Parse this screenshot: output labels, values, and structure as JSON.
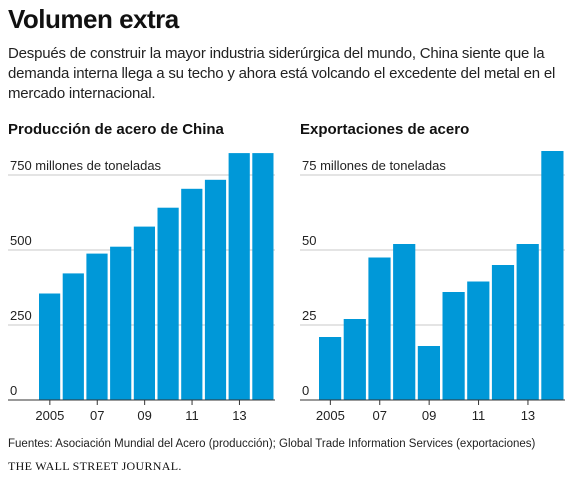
{
  "title": "Volumen extra",
  "subtitle": "Después de construir la mayor industria siderúrgica del mundo, China siente que la demanda interna llega a su techo y ahora está volcando el excedente del metal en el mercado internacional.",
  "source": "Fuentes: Asociación Mundial del Acero (producción); Global Trade Information Services (exportaciones)",
  "credit": "THE WALL STREET JOURNAL.",
  "chart_data": [
    {
      "type": "bar",
      "title": "Producción de acero de China",
      "categories": [
        "2005",
        null,
        "07",
        null,
        "09",
        null,
        "11",
        null,
        "13",
        null
      ],
      "values": [
        355,
        422,
        488,
        511,
        578,
        641,
        704,
        734,
        823,
        823
      ],
      "color": "#0098d8",
      "ylim": [
        0,
        830
      ],
      "yticks": [
        0,
        250,
        500,
        {
          "value": 750,
          "label": "750 millones de toneladas"
        }
      ],
      "grid": true
    },
    {
      "type": "bar",
      "title": "Exportaciones de acero",
      "categories": [
        "2005",
        null,
        "07",
        null,
        "09",
        null,
        "11",
        null,
        "13",
        null
      ],
      "values": [
        21,
        27,
        47.5,
        52,
        18,
        36,
        39.5,
        45,
        52,
        83
      ],
      "color": "#0098d8",
      "ylim": [
        0,
        83
      ],
      "yticks": [
        0,
        25,
        50,
        {
          "value": 75,
          "label": "75 millones de toneladas"
        }
      ],
      "grid": true
    }
  ]
}
